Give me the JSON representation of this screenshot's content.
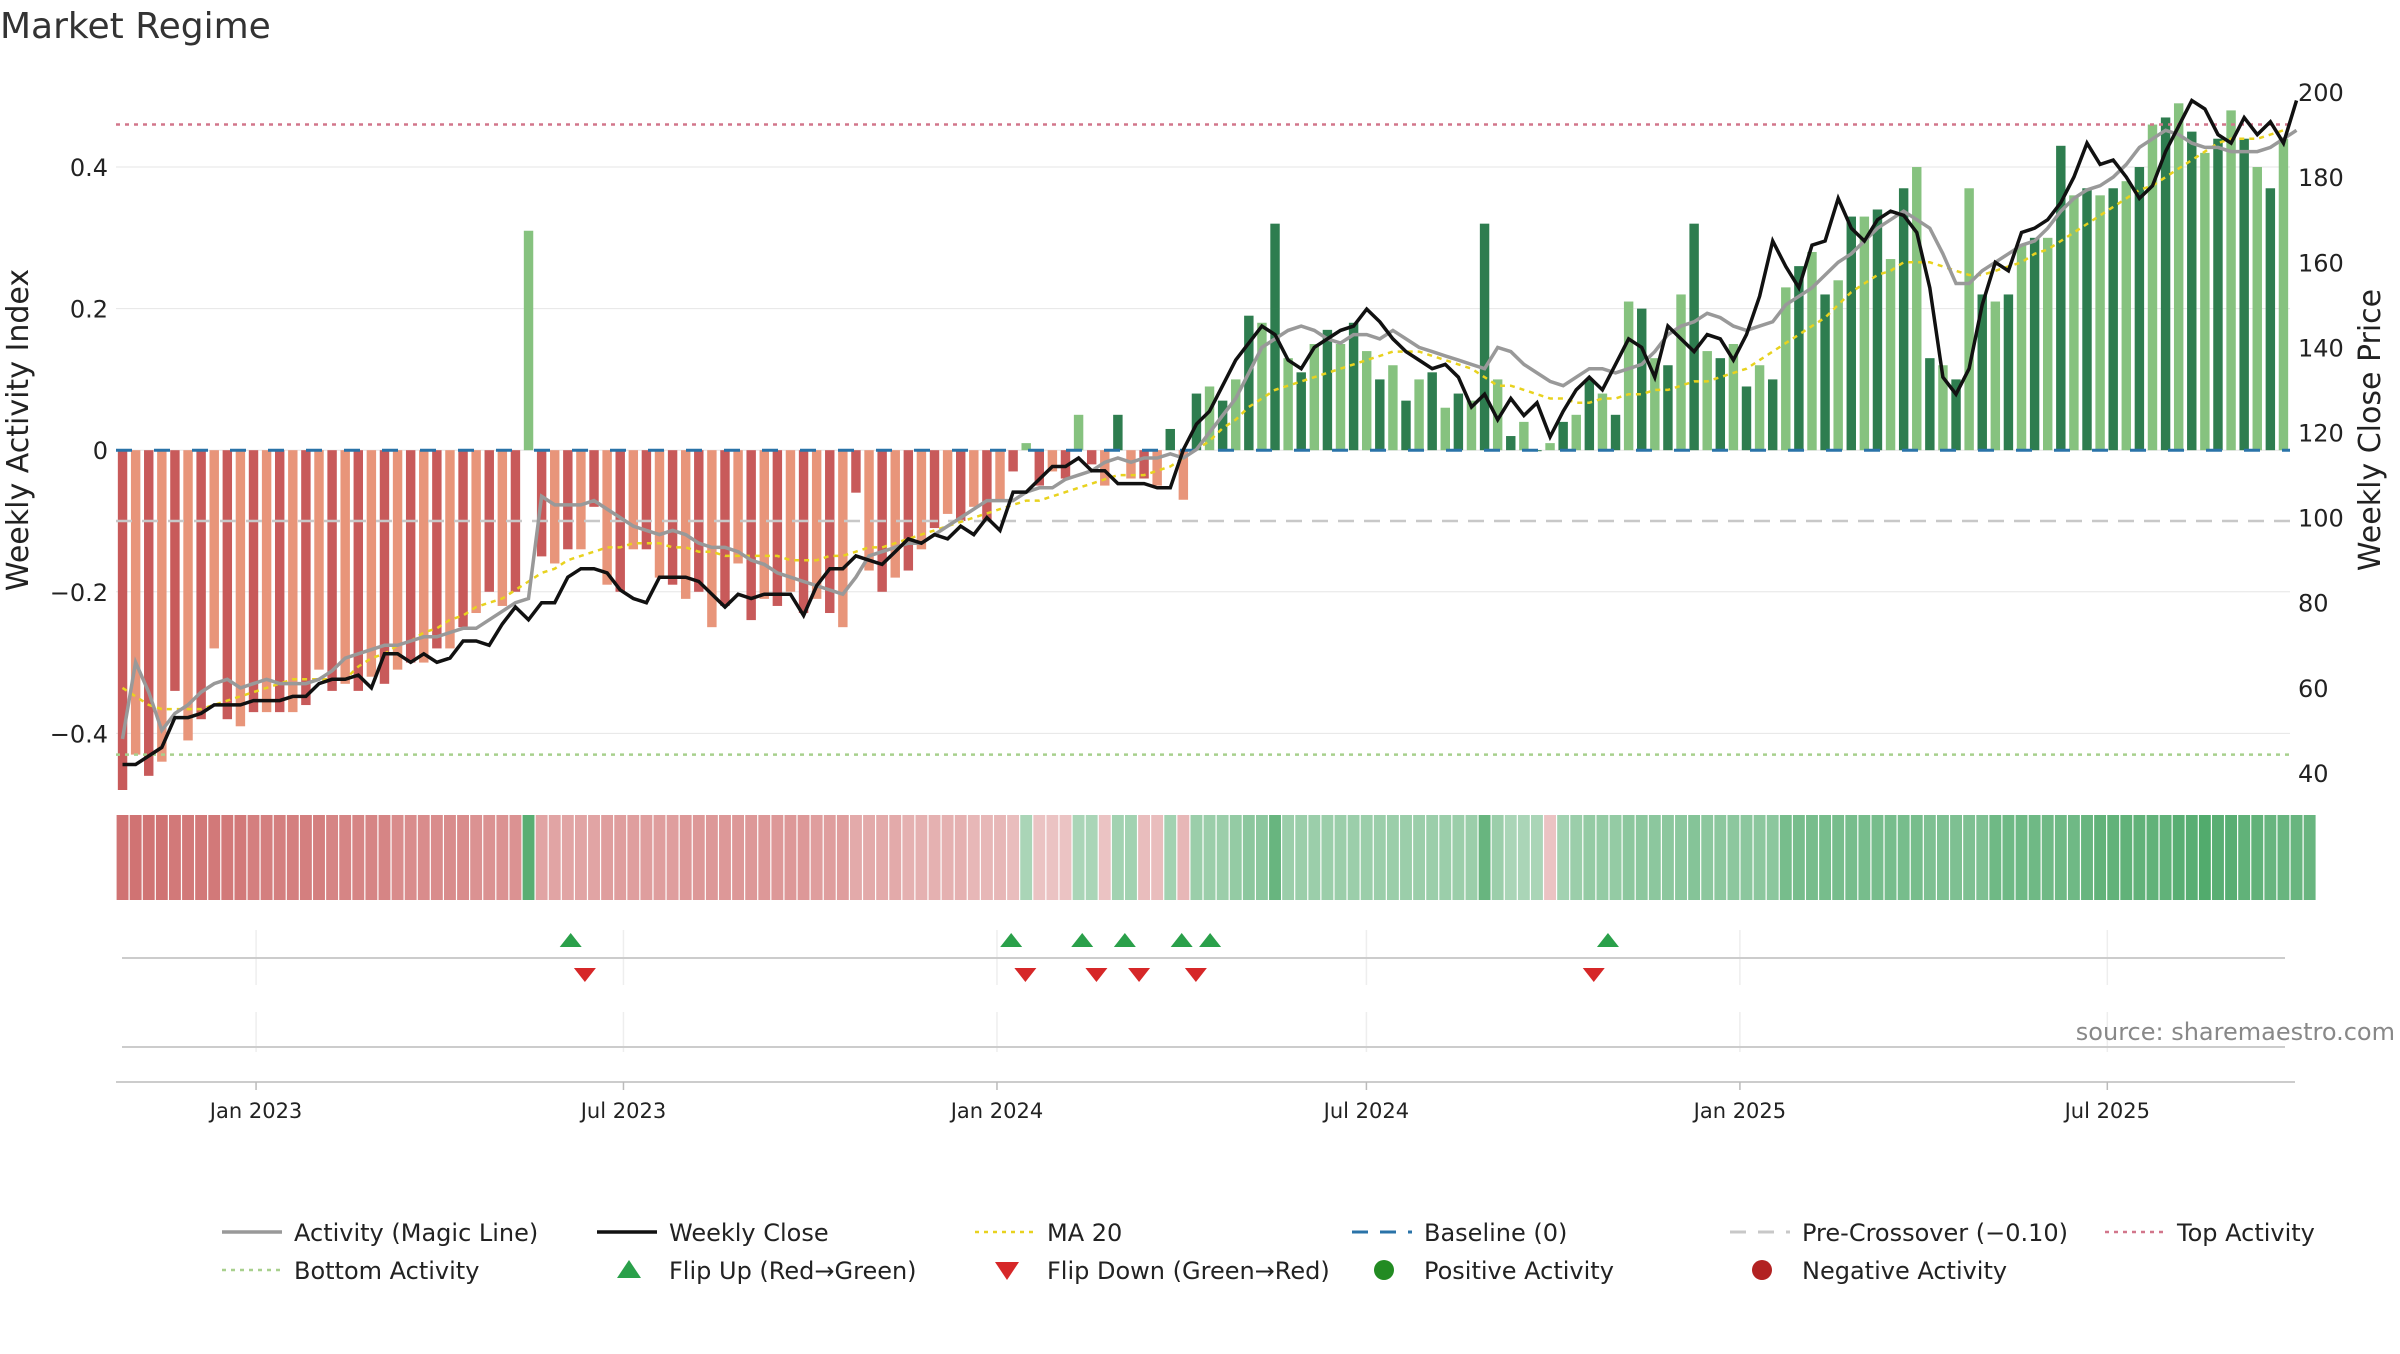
{
  "title": "Market Regime",
  "source": "source: sharemaestro.com",
  "chart_data": {
    "type": "bar",
    "title": "Market Regime",
    "ylabel_left": "Weekly Activity Index",
    "ylabel_right": "Weekly Close Price",
    "ylim_left": [
      -0.48,
      0.53
    ],
    "ylim_right": [
      36,
      204
    ],
    "yticks_left": [
      -0.4,
      -0.2,
      0,
      0.2,
      0.4
    ],
    "yticks_left_labels": [
      "−0.4",
      "−0.2",
      "0",
      "0.2",
      "0.4"
    ],
    "yticks_right": [
      40,
      60,
      80,
      100,
      120,
      140,
      160,
      180,
      200
    ],
    "yticks_right_labels": [
      "40",
      "60",
      "80",
      "100",
      "120",
      "140",
      "160",
      "180",
      "200"
    ],
    "x_start": "2022-10-24",
    "x_end": "2025-09-29",
    "xticks": [
      {
        "date": "2023-01-01",
        "label": "Jan 2023"
      },
      {
        "date": "2023-07-01",
        "label": "Jul 2023"
      },
      {
        "date": "2024-01-01",
        "label": "Jan 2024"
      },
      {
        "date": "2024-07-01",
        "label": "Jul 2024"
      },
      {
        "date": "2025-01-01",
        "label": "Jan 2025"
      },
      {
        "date": "2025-07-01",
        "label": "Jul 2025"
      }
    ],
    "reference_lines": {
      "top_activity": 0.46,
      "bottom_activity": -0.43,
      "baseline": 0,
      "pre_crossover": -0.1
    },
    "activity": [
      -0.48,
      -0.43,
      -0.46,
      -0.44,
      -0.34,
      -0.41,
      -0.38,
      -0.28,
      -0.38,
      -0.39,
      -0.37,
      -0.37,
      -0.37,
      -0.37,
      -0.36,
      -0.31,
      -0.34,
      -0.33,
      -0.34,
      -0.32,
      -0.33,
      -0.31,
      -0.3,
      -0.3,
      -0.28,
      -0.28,
      -0.25,
      -0.23,
      -0.2,
      -0.22,
      -0.2,
      0.31,
      -0.15,
      -0.16,
      -0.14,
      -0.14,
      -0.08,
      -0.19,
      -0.2,
      -0.14,
      -0.14,
      -0.18,
      -0.19,
      -0.21,
      -0.2,
      -0.25,
      -0.22,
      -0.16,
      -0.24,
      -0.21,
      -0.22,
      -0.2,
      -0.23,
      -0.21,
      -0.23,
      -0.25,
      -0.06,
      -0.17,
      -0.2,
      -0.18,
      -0.17,
      -0.14,
      -0.11,
      -0.09,
      -0.1,
      -0.08,
      -0.1,
      -0.07,
      -0.03,
      0.01,
      -0.05,
      -0.03,
      -0.04,
      0.05,
      -0.02,
      -0.05,
      0.05,
      -0.04,
      -0.04,
      -0.05,
      0.03,
      -0.07,
      0.08,
      0.09,
      0.07,
      0.1,
      0.19,
      0.18,
      0.32,
      0.13,
      0.11,
      0.15,
      0.17,
      0.15,
      0.18,
      0.14,
      0.1,
      0.12,
      0.07,
      0.1,
      0.11,
      0.06,
      0.08,
      0.07,
      0.32,
      0.1,
      0.02,
      0.04,
      0.0,
      0.01,
      0.04,
      0.05,
      0.1,
      0.08,
      0.05,
      0.21,
      0.2,
      0.13,
      0.12,
      0.22,
      0.32,
      0.14,
      0.13,
      0.15,
      0.09,
      0.12,
      0.1,
      0.23,
      0.26,
      0.28,
      0.22,
      0.24,
      0.33,
      0.33,
      0.34,
      0.27,
      0.37,
      0.4,
      0.13,
      0.12,
      0.1,
      0.37,
      0.22,
      0.21,
      0.22,
      0.29,
      0.3,
      0.3,
      0.43,
      0.36,
      0.37,
      0.36,
      0.37,
      0.38,
      0.4,
      0.46,
      0.47,
      0.49,
      0.45,
      0.42,
      0.44,
      0.48,
      0.44,
      0.4,
      0.37,
      0.44
    ],
    "magic_line": [
      48,
      66,
      59,
      50,
      54,
      56,
      59,
      61,
      62,
      60,
      61,
      62,
      61,
      61,
      61,
      62,
      64,
      67,
      68,
      69,
      70,
      70,
      71,
      72,
      72,
      73,
      74,
      74,
      76,
      78,
      80,
      81,
      105,
      103,
      103,
      103,
      104,
      102,
      100,
      98,
      97,
      96,
      97,
      96,
      94,
      93,
      93,
      92,
      90,
      89,
      87,
      86,
      85,
      84,
      83,
      82,
      86,
      91,
      92,
      93,
      94,
      94,
      96,
      98,
      100,
      102,
      104,
      104,
      104,
      106,
      107,
      107,
      109,
      110,
      111,
      113,
      114,
      113,
      114,
      114,
      115,
      114,
      116,
      120,
      124,
      128,
      134,
      140,
      142,
      144,
      145,
      144,
      142,
      141,
      143,
      143,
      142,
      144,
      142,
      140,
      139,
      138,
      137,
      136,
      135,
      140,
      139,
      136,
      134,
      132,
      131,
      133,
      135,
      135,
      134,
      135,
      136,
      139,
      143,
      145,
      146,
      148,
      147,
      145,
      144,
      145,
      146,
      150,
      152,
      154,
      157,
      160,
      162,
      165,
      168,
      170,
      172,
      170,
      168,
      162,
      155,
      155,
      158,
      160,
      162,
      164,
      165,
      168,
      172,
      175,
      177,
      178,
      180,
      183,
      187,
      189,
      191,
      190,
      188,
      187,
      187,
      186,
      186,
      186,
      187,
      189,
      191
    ],
    "weekly_close": [
      42,
      42,
      44,
      46,
      53,
      53,
      54,
      56,
      56,
      56,
      57,
      57,
      57,
      58,
      58,
      61,
      62,
      62,
      63,
      60,
      68,
      68,
      66,
      68,
      66,
      67,
      71,
      71,
      70,
      75,
      79,
      76,
      80,
      80,
      86,
      88,
      88,
      87,
      83,
      81,
      80,
      86,
      86,
      86,
      85,
      82,
      79,
      82,
      81,
      82,
      82,
      82,
      77,
      84,
      88,
      88,
      91,
      90,
      89,
      92,
      95,
      94,
      96,
      95,
      98,
      96,
      100,
      97,
      106,
      106,
      109,
      112,
      112,
      114,
      111,
      111,
      108,
      108,
      108,
      107,
      107,
      116,
      122,
      125,
      131,
      137,
      141,
      145,
      143,
      137,
      135,
      140,
      142,
      144,
      145,
      149,
      146,
      142,
      139,
      137,
      135,
      136,
      133,
      126,
      129,
      123,
      128,
      124,
      127,
      119,
      125,
      130,
      133,
      130,
      136,
      142,
      140,
      133,
      145,
      142,
      139,
      143,
      142,
      137,
      143,
      152,
      165,
      159,
      154,
      164,
      165,
      175,
      168,
      165,
      170,
      172,
      171,
      167,
      154,
      133,
      129,
      135,
      150,
      160,
      158,
      167,
      168,
      170,
      174,
      180,
      188,
      183,
      184,
      180,
      175,
      178,
      186,
      192,
      198,
      196,
      190,
      188,
      194,
      190,
      193,
      188,
      198
    ],
    "ma20": [
      60,
      58,
      56,
      55,
      55,
      55,
      55,
      56,
      57,
      58,
      59,
      60,
      61,
      62,
      62,
      62,
      62,
      62,
      65,
      67,
      68,
      70,
      71,
      73,
      74,
      76,
      77,
      79,
      80,
      81,
      83,
      85,
      87,
      88,
      90,
      91,
      92,
      93,
      93,
      94,
      94,
      94,
      93,
      93,
      92,
      92,
      91,
      91,
      91,
      91,
      91,
      90,
      90,
      90,
      91,
      91,
      92,
      93,
      93,
      94,
      95,
      96,
      97,
      98,
      99,
      100,
      101,
      102,
      103,
      104,
      104,
      105,
      106,
      107,
      108,
      109,
      110,
      110,
      110,
      111,
      112,
      114,
      116,
      118,
      121,
      123,
      126,
      128,
      130,
      131,
      132,
      133,
      134,
      135,
      136,
      137,
      138,
      139,
      139,
      139,
      138,
      137,
      136,
      135,
      133,
      131,
      131,
      130,
      129,
      128,
      128,
      127,
      127,
      128,
      128,
      129,
      129,
      130,
      130,
      131,
      132,
      132,
      133,
      134,
      135,
      137,
      139,
      141,
      143,
      145,
      147,
      150,
      153,
      155,
      157,
      158,
      160,
      160,
      160,
      159,
      158,
      157,
      157,
      158,
      159,
      160,
      162,
      163,
      165,
      167,
      169,
      171,
      173,
      175,
      177,
      178,
      180,
      182,
      184,
      186,
      188,
      189,
      189,
      189,
      190,
      191
    ],
    "regime_strips": [
      -0.8,
      -0.8,
      -0.8,
      -0.8,
      -0.75,
      -0.75,
      -0.75,
      -0.75,
      -0.75,
      -0.75,
      -0.7,
      -0.7,
      -0.7,
      -0.7,
      -0.7,
      -0.7,
      -0.65,
      -0.65,
      -0.65,
      -0.65,
      -0.65,
      -0.6,
      -0.6,
      -0.6,
      -0.6,
      -0.6,
      -0.6,
      -0.55,
      -0.55,
      -0.55,
      -0.55,
      0.8,
      -0.4,
      -0.4,
      -0.4,
      -0.4,
      -0.4,
      -0.45,
      -0.45,
      -0.45,
      -0.45,
      -0.45,
      -0.45,
      -0.5,
      -0.5,
      -0.5,
      -0.5,
      -0.5,
      -0.5,
      -0.5,
      -0.5,
      -0.5,
      -0.5,
      -0.45,
      -0.45,
      -0.45,
      -0.35,
      -0.35,
      -0.35,
      -0.35,
      -0.3,
      -0.3,
      -0.3,
      -0.3,
      -0.3,
      -0.25,
      -0.25,
      -0.25,
      -0.2,
      0.25,
      -0.15,
      -0.15,
      -0.15,
      0.25,
      0.25,
      -0.15,
      0.3,
      0.3,
      -0.2,
      -0.2,
      0.3,
      -0.25,
      0.35,
      0.35,
      0.35,
      0.4,
      0.45,
      0.45,
      0.7,
      0.35,
      0.35,
      0.35,
      0.35,
      0.35,
      0.35,
      0.35,
      0.35,
      0.35,
      0.35,
      0.35,
      0.35,
      0.35,
      0.35,
      0.35,
      0.7,
      0.35,
      0.25,
      0.25,
      0.25,
      -0.15,
      0.3,
      0.35,
      0.4,
      0.4,
      0.4,
      0.45,
      0.45,
      0.45,
      0.45,
      0.45,
      0.5,
      0.45,
      0.45,
      0.45,
      0.45,
      0.45,
      0.45,
      0.6,
      0.6,
      0.6,
      0.6,
      0.6,
      0.6,
      0.6,
      0.6,
      0.6,
      0.6,
      0.6,
      0.55,
      0.55,
      0.55,
      0.55,
      0.55,
      0.65,
      0.65,
      0.65,
      0.65,
      0.65,
      0.65,
      0.65,
      0.7,
      0.75,
      0.75,
      0.75,
      0.75,
      0.75,
      0.75,
      0.8,
      0.8,
      0.85,
      0.8,
      0.8,
      0.75,
      0.75,
      0.7,
      0.7,
      0.7,
      0.7
    ],
    "flip_up": [
      "2023-06-05",
      "2024-01-08",
      "2024-02-12",
      "2024-03-04",
      "2024-04-01",
      "2024-04-15",
      "2024-10-28"
    ],
    "flip_down": [
      "2023-06-12",
      "2024-01-15",
      "2024-02-19",
      "2024-03-11",
      "2024-04-08",
      "2024-10-21"
    ],
    "legend": [
      {
        "label": "Activity (Magic Line)",
        "kind": "line",
        "color": "#999999"
      },
      {
        "label": "Weekly Close",
        "kind": "line",
        "color": "#111111"
      },
      {
        "label": "MA 20",
        "kind": "dotted",
        "color": "#e8d21f"
      },
      {
        "label": "Baseline (0)",
        "kind": "dashed",
        "color": "#2a73a8"
      },
      {
        "label": "Pre-Crossover (−0.10)",
        "kind": "dashed",
        "color": "#c8c8c8"
      },
      {
        "label": "Top Activity",
        "kind": "dotted",
        "color": "#d2768b"
      },
      {
        "label": "Bottom Activity",
        "kind": "dotted",
        "color": "#a8d08d"
      },
      {
        "label": "Flip Up (Red→Green)",
        "kind": "tri-up",
        "color": "#2aa04a"
      },
      {
        "label": "Flip Down (Green→Red)",
        "kind": "tri-down",
        "color": "#d62728"
      },
      {
        "label": "Positive Activity",
        "kind": "dot",
        "color": "#228b22"
      },
      {
        "label": "Negative Activity",
        "kind": "dot",
        "color": "#b22222"
      }
    ],
    "colors": {
      "pos_strong": "#2e7d4f",
      "pos_light": "#86c27f",
      "neg_strong": "#c85a5a",
      "neg_light": "#e8957a",
      "close_line": "#111111",
      "magic_line": "#999999",
      "ma20": "#e8d21f"
    }
  }
}
